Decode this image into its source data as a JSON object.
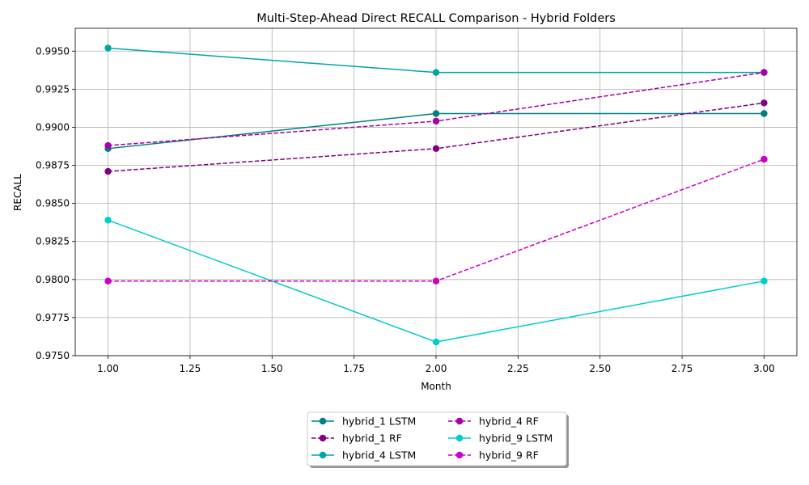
{
  "chart_data": {
    "type": "line",
    "title": "Multi-Step-Ahead Direct RECALL Comparison - Hybrid Folders",
    "xlabel": "Month",
    "ylabel": "RECALL",
    "xlim": [
      0.9,
      3.1
    ],
    "ylim": [
      0.975,
      0.9965
    ],
    "x_ticks": [
      "1.00",
      "1.25",
      "1.50",
      "1.75",
      "2.00",
      "2.25",
      "2.50",
      "2.75",
      "3.00"
    ],
    "y_ticks": [
      "0.9750",
      "0.9775",
      "0.9800",
      "0.9825",
      "0.9850",
      "0.9875",
      "0.9900",
      "0.9925",
      "0.9950"
    ],
    "grid": true,
    "legend_position": "below-center",
    "x": [
      1,
      2,
      3
    ],
    "series": [
      {
        "name": "hybrid_1 LSTM",
        "values": [
          0.9886,
          0.9909,
          0.9909
        ],
        "color": "#008080",
        "style": "solid"
      },
      {
        "name": "hybrid_1 RF",
        "values": [
          0.9871,
          0.9886,
          0.9916
        ],
        "color": "#800080",
        "style": "dashed"
      },
      {
        "name": "hybrid_4 LSTM",
        "values": [
          0.9952,
          0.9936,
          0.9936
        ],
        "color": "#00a6a6",
        "style": "solid"
      },
      {
        "name": "hybrid_4 RF",
        "values": [
          0.9888,
          0.9904,
          0.9936
        ],
        "color": "#a600a6",
        "style": "dashed"
      },
      {
        "name": "hybrid_9 LSTM",
        "values": [
          0.9839,
          0.9759,
          0.9799
        ],
        "color": "#00cccc",
        "style": "solid"
      },
      {
        "name": "hybrid_9 RF",
        "values": [
          0.9799,
          0.9799,
          0.9879
        ],
        "color": "#cc00cc",
        "style": "dashed"
      }
    ]
  }
}
